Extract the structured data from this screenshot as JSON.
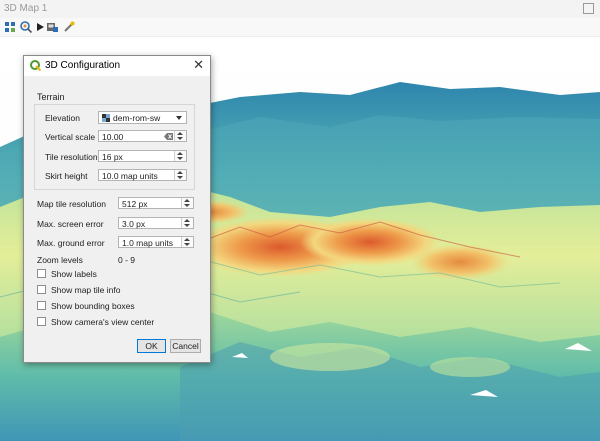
{
  "window": {
    "title": "3D Map 1"
  },
  "toolbar": {
    "icons": [
      "camera-control-icon",
      "zoom-full-icon",
      "animation-play-icon",
      "save-image-icon",
      "configure-icon"
    ]
  },
  "dialog": {
    "title": "3D Configuration",
    "terrain_group": "Terrain",
    "elevation": {
      "label": "Elevation",
      "value": "dem-rom-sw"
    },
    "vertical_scale": {
      "label": "Vertical scale",
      "value": "10.00"
    },
    "tile_resolution": {
      "label": "Tile resolution",
      "value": "16 px"
    },
    "skirt_height": {
      "label": "Skirt height",
      "value": "10.0 map units"
    },
    "map_tile_resolution": {
      "label": "Map tile resolution",
      "value": "512 px"
    },
    "max_screen_error": {
      "label": "Max. screen error",
      "value": "3.0 px"
    },
    "max_ground_error": {
      "label": "Max. ground error",
      "value": "1.0 map units"
    },
    "zoom_levels": {
      "label": "Zoom levels",
      "value": "0 - 9"
    },
    "checkboxes": [
      {
        "label": "Show labels",
        "checked": false
      },
      {
        "label": "Show map tile info",
        "checked": false
      },
      {
        "label": "Show bounding boxes",
        "checked": false
      },
      {
        "label": "Show camera's view center",
        "checked": false
      }
    ],
    "ok_label": "OK",
    "cancel_label": "Cancel"
  },
  "colors": {
    "terrain_low": "#3f8fb4",
    "terrain_mid": "#8fd29a",
    "terrain_high": "#f0e08a",
    "terrain_peak": "#e2662f"
  }
}
